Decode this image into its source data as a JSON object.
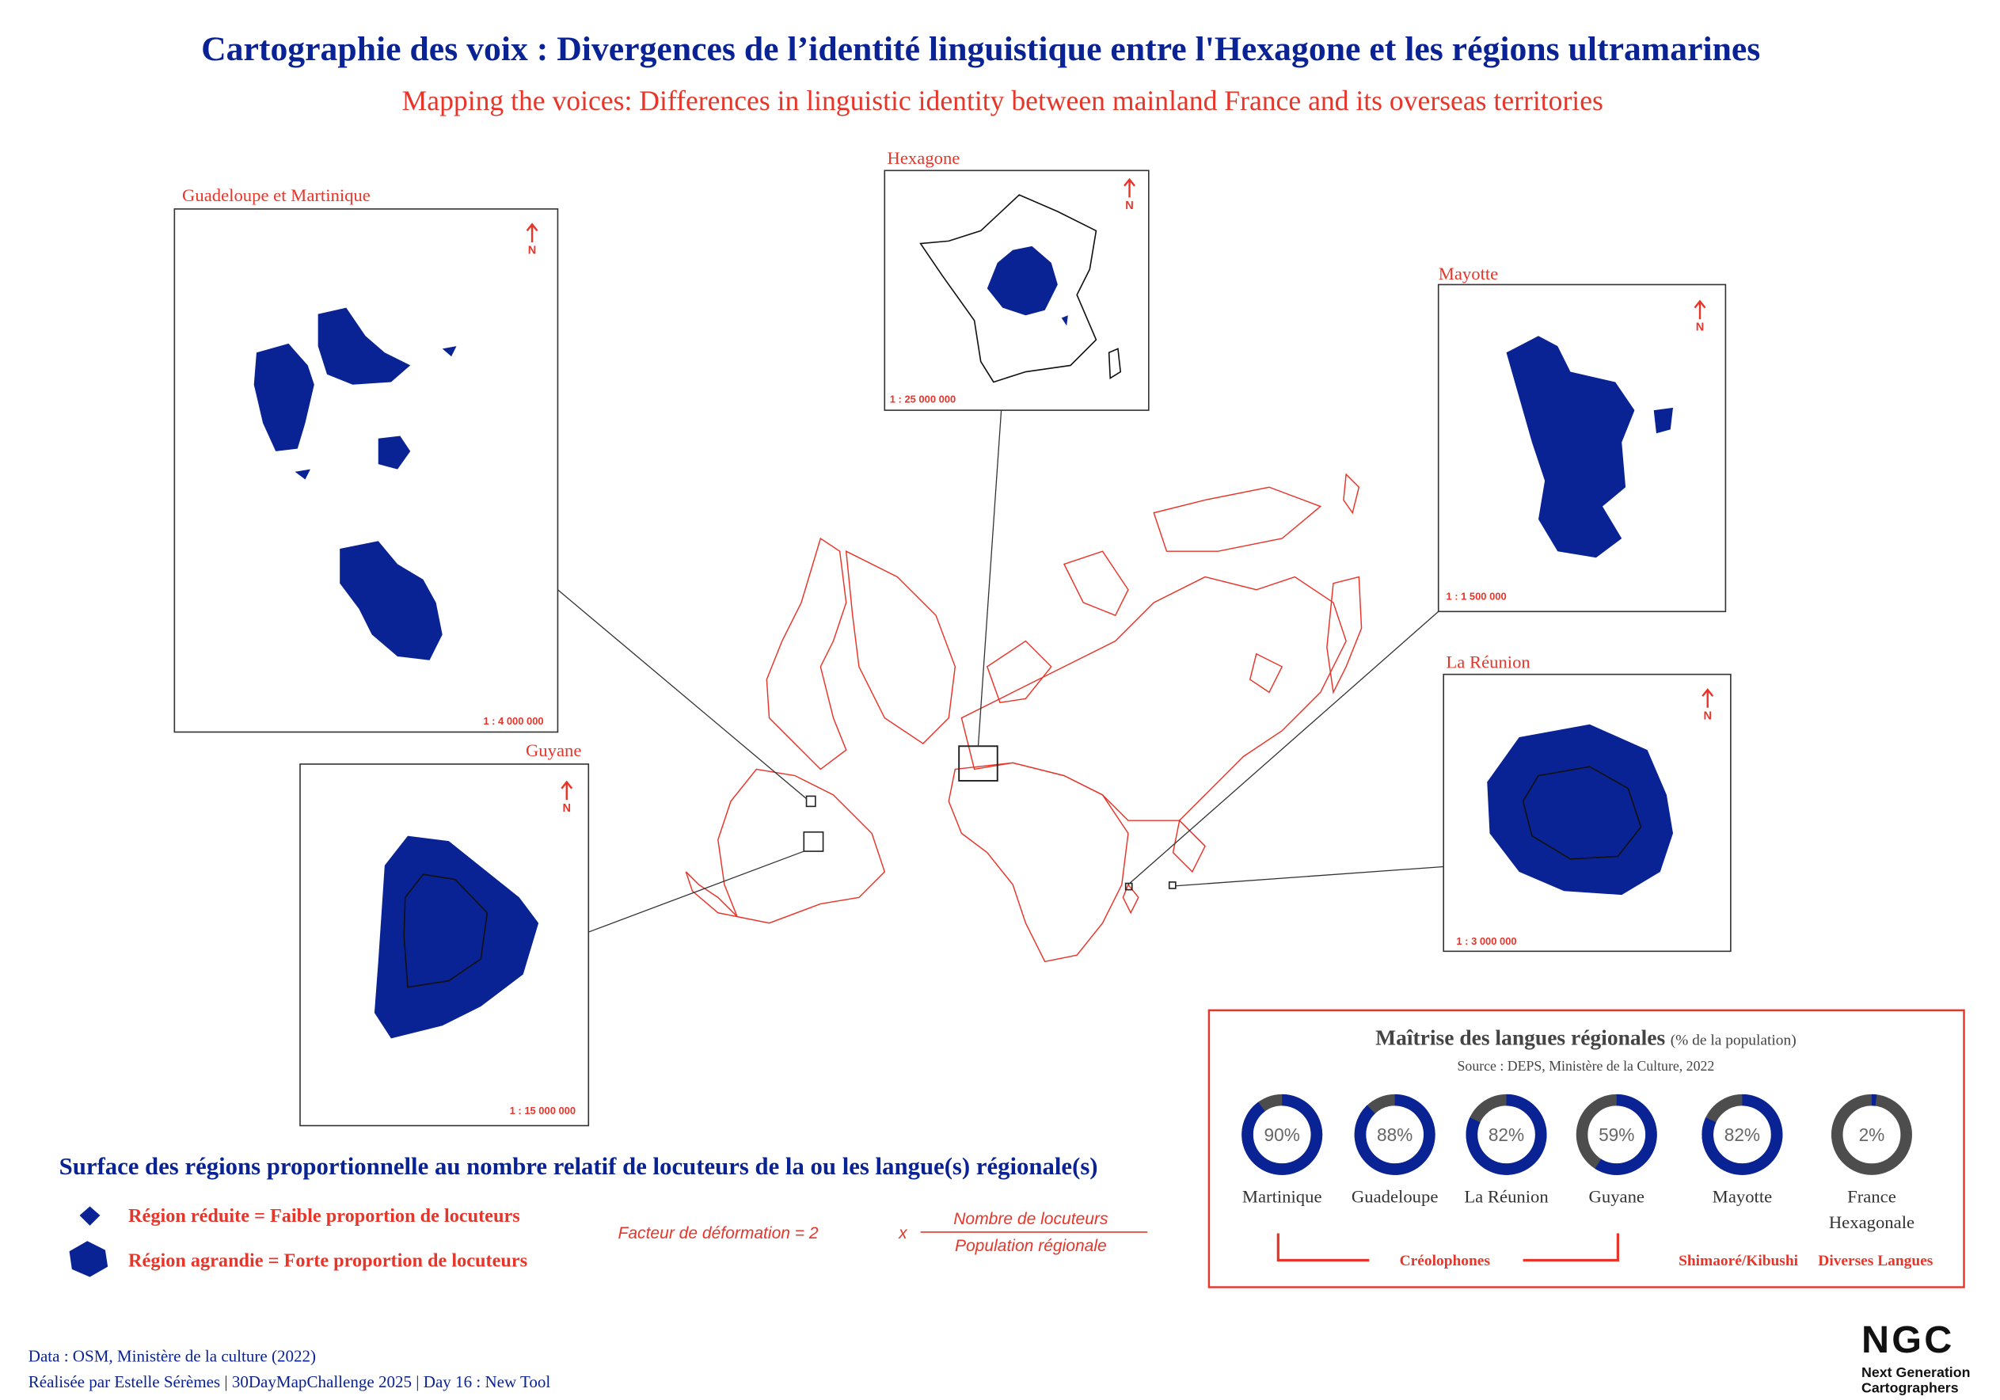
{
  "header": {
    "title": "Cartographie des voix : Divergences de l’identité linguistique entre l'Hexagone et les régions ultramarines",
    "subtitle": "Mapping the voices: Differences in linguistic identity between mainland France and its overseas territories"
  },
  "insets": [
    {
      "label": "Guadeloupe et Martinique",
      "scale": "1 : 4 000 000"
    },
    {
      "label": "Hexagone",
      "scale": "1 : 25 000 000"
    },
    {
      "label": "Mayotte",
      "scale": "1 : 1 500 000"
    },
    {
      "label": "La Réunion",
      "scale": "1 : 3 000 000"
    },
    {
      "label": "Guyane",
      "scale": "1 : 15 000 000"
    }
  ],
  "north": "N",
  "legend": {
    "title": "Surface des régions proportionnelle au nombre relatif de locuteurs de la ou les langue(s) régionale(s)",
    "items": [
      "Région réduite = Faible proportion de locuteurs",
      "Région agrandie = Forte proportion de locuteurs"
    ],
    "formula": {
      "lhs": "Facteur de déformation = 2",
      "times": "x",
      "numerator": "Nombre de locuteurs",
      "denominator": "Population régionale"
    }
  },
  "chart_data": {
    "type": "donut",
    "title": "Maîtrise des langues régionales",
    "title_note": "(% de la population)",
    "subtitle": "Source : DEPS, Ministère de la Culture, 2022",
    "categories": [
      "Martinique",
      "Guadeloupe",
      "La Réunion",
      "Guyane",
      "Mayotte",
      "France Hexagonale"
    ],
    "values": [
      90,
      88,
      82,
      59,
      82,
      2
    ],
    "value_labels": [
      "90%",
      "88%",
      "82%",
      "59%",
      "82%",
      "2%"
    ],
    "color": "#0a2394",
    "rest_color": "#4d4d4d",
    "groups": [
      "Créolophones",
      "Shimaoré/Kibushi",
      "Diverses Langues"
    ]
  },
  "credits": [
    "Data : OSM, Ministère de la culture (2022)",
    "Réalisée par Estelle Sérèmes | 30DayMapChallenge 2025 | Day 16 : New Tool"
  ],
  "logo": {
    "mark": "NGC",
    "name": [
      "Next Generation",
      "Cartographers"
    ]
  }
}
